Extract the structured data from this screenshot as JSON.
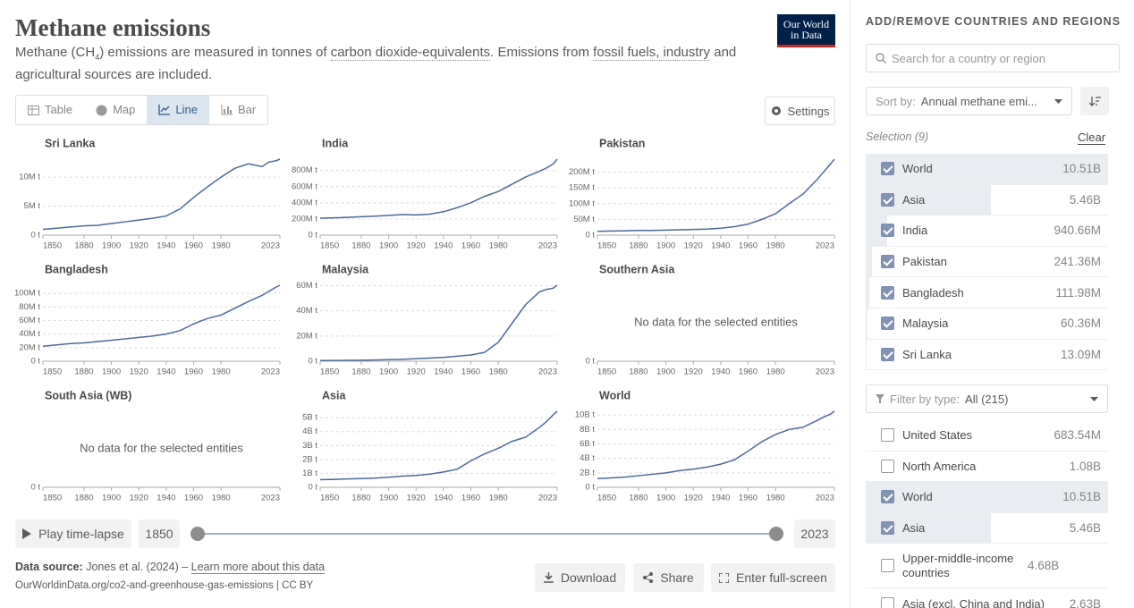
{
  "header": {
    "title": "Methane emissions",
    "subtitle": [
      "Methane (CH",
      "4",
      ") emissions are measured in tonnes of ",
      "carbon dioxide-equivalents",
      ". Emissions from ",
      "fossil fuels, industry",
      " and agricultural sources are included."
    ],
    "logo": [
      "Our World",
      "in Data"
    ]
  },
  "tabs": [
    "Table",
    "Map",
    "Line",
    "Bar"
  ],
  "settings": "Settings",
  "chart_data": [
    {
      "type": "line",
      "title": "Sri Lanka",
      "color": "#4c6a9c",
      "x": [
        1850,
        1860,
        1870,
        1880,
        1890,
        1900,
        1910,
        1920,
        1930,
        1940,
        1950,
        1960,
        1970,
        1980,
        1990,
        2000,
        2010,
        2015,
        2020,
        2023
      ],
      "values": [
        1000000,
        1200000,
        1400000,
        1600000,
        1700000,
        2000000,
        2300000,
        2600000,
        2900000,
        3300000,
        4500000,
        6500000,
        8300000,
        10000000,
        11500000,
        12300000,
        11800000,
        12600000,
        12800000,
        13090000
      ],
      "xlim": [
        1850,
        2023
      ],
      "xticks": [
        1850,
        1880,
        1900,
        1920,
        1940,
        1960,
        1980,
        2023
      ],
      "ylim": [
        0,
        13090000
      ],
      "yticks": [
        {
          "value": 0,
          "label": "0 t"
        },
        {
          "value": 5000000,
          "label": "5M t"
        },
        {
          "value": 10000000,
          "label": "10M t"
        }
      ]
    },
    {
      "type": "line",
      "title": "India",
      "color": "#4c6a9c",
      "x": [
        1850,
        1860,
        1870,
        1880,
        1890,
        1900,
        1910,
        1920,
        1930,
        1940,
        1950,
        1960,
        1970,
        1980,
        1990,
        2000,
        2010,
        2015,
        2020,
        2023
      ],
      "values": [
        210000000,
        215000000,
        220000000,
        228000000,
        235000000,
        245000000,
        255000000,
        250000000,
        260000000,
        290000000,
        340000000,
        400000000,
        480000000,
        540000000,
        630000000,
        720000000,
        790000000,
        830000000,
        880000000,
        940660000
      ],
      "xlim": [
        1850,
        2023
      ],
      "xticks": [
        1850,
        1880,
        1900,
        1920,
        1940,
        1960,
        1980,
        2023
      ],
      "ylim": [
        0,
        940660000
      ],
      "yticks": [
        {
          "value": 0,
          "label": "0 t"
        },
        {
          "value": 200000000,
          "label": "200M t"
        },
        {
          "value": 400000000,
          "label": "400M t"
        },
        {
          "value": 600000000,
          "label": "600M t"
        },
        {
          "value": 800000000,
          "label": "800M t"
        }
      ]
    },
    {
      "type": "line",
      "title": "Pakistan",
      "color": "#4c6a9c",
      "x": [
        1850,
        1860,
        1870,
        1880,
        1890,
        1900,
        1910,
        1920,
        1930,
        1940,
        1950,
        1960,
        1970,
        1980,
        1990,
        2000,
        2010,
        2015,
        2020,
        2023
      ],
      "values": [
        12000000,
        13000000,
        14000000,
        15000000,
        15000000,
        16000000,
        17000000,
        18000000,
        19000000,
        22000000,
        27000000,
        35000000,
        50000000,
        68000000,
        100000000,
        130000000,
        175000000,
        200000000,
        225000000,
        241360000
      ],
      "xlim": [
        1850,
        2023
      ],
      "xticks": [
        1850,
        1880,
        1900,
        1920,
        1940,
        1960,
        1980,
        2023
      ],
      "ylim": [
        0,
        241360000
      ],
      "yticks": [
        {
          "value": 0,
          "label": "0 t"
        },
        {
          "value": 50000000,
          "label": "50M t"
        },
        {
          "value": 100000000,
          "label": "100M t"
        },
        {
          "value": 150000000,
          "label": "150M t"
        },
        {
          "value": 200000000,
          "label": "200M t"
        }
      ]
    },
    {
      "type": "line",
      "title": "Bangladesh",
      "color": "#4c6a9c",
      "x": [
        1850,
        1860,
        1870,
        1880,
        1890,
        1900,
        1910,
        1920,
        1930,
        1940,
        1950,
        1960,
        1970,
        1980,
        1990,
        2000,
        2010,
        2015,
        2020,
        2023
      ],
      "values": [
        22000000,
        24000000,
        26000000,
        27000000,
        29000000,
        31000000,
        33000000,
        35000000,
        37000000,
        40000000,
        45000000,
        55000000,
        63000000,
        68000000,
        78000000,
        88000000,
        97000000,
        103000000,
        109000000,
        111980000
      ],
      "xlim": [
        1850,
        2023
      ],
      "xticks": [
        1850,
        1880,
        1900,
        1920,
        1940,
        1960,
        1980,
        2023
      ],
      "ylim": [
        0,
        111980000
      ],
      "yticks": [
        {
          "value": 0,
          "label": "0 t"
        },
        {
          "value": 20000000,
          "label": "20M t"
        },
        {
          "value": 40000000,
          "label": "40M t"
        },
        {
          "value": 60000000,
          "label": "60M t"
        },
        {
          "value": 80000000,
          "label": "80M t"
        },
        {
          "value": 100000000,
          "label": "100M t"
        }
      ]
    },
    {
      "type": "line",
      "title": "Malaysia",
      "color": "#4c6a9c",
      "x": [
        1850,
        1860,
        1870,
        1880,
        1890,
        1900,
        1910,
        1920,
        1930,
        1940,
        1950,
        1960,
        1970,
        1980,
        1990,
        2000,
        2010,
        2015,
        2020,
        2023
      ],
      "values": [
        500000,
        600000,
        700000,
        800000,
        1000000,
        1200000,
        1500000,
        2000000,
        2500000,
        3000000,
        4000000,
        5000000,
        7000000,
        15000000,
        30000000,
        45000000,
        55000000,
        57000000,
        58000000,
        60360000
      ],
      "xlim": [
        1850,
        2023
      ],
      "xticks": [
        1850,
        1880,
        1900,
        1920,
        1940,
        1960,
        1980,
        2023
      ],
      "ylim": [
        0,
        60360000
      ],
      "yticks": [
        {
          "value": 0,
          "label": "0 t"
        },
        {
          "value": 20000000,
          "label": "20M t"
        },
        {
          "value": 40000000,
          "label": "40M t"
        },
        {
          "value": 60000000,
          "label": "60M t"
        }
      ]
    },
    {
      "type": "line",
      "title": "Southern Asia",
      "message": "No data for the selected entities",
      "xlim": [
        1850,
        2023
      ],
      "xticks": [
        1850,
        1880,
        1900,
        1920,
        1940,
        1960,
        1980,
        2023
      ],
      "yticks": [
        {
          "value": 0,
          "label": "0 t"
        }
      ]
    },
    {
      "type": "line",
      "title": "South Asia (WB)",
      "message": "No data for the selected entities",
      "xlim": [
        1850,
        2023
      ],
      "xticks": [
        1850,
        1880,
        1900,
        1920,
        1940,
        1960,
        1980,
        2023
      ],
      "yticks": [
        {
          "value": 0,
          "label": "0 t"
        }
      ]
    },
    {
      "type": "line",
      "title": "Asia",
      "color": "#4c6a9c",
      "x": [
        1850,
        1860,
        1870,
        1880,
        1890,
        1900,
        1910,
        1920,
        1930,
        1940,
        1950,
        1960,
        1970,
        1980,
        1990,
        2000,
        2010,
        2015,
        2020,
        2023
      ],
      "values": [
        550000000,
        570000000,
        600000000,
        630000000,
        660000000,
        720000000,
        800000000,
        850000000,
        950000000,
        1100000000,
        1300000000,
        1900000000,
        2400000000,
        2800000000,
        3300000000,
        3600000000,
        4300000000,
        4700000000,
        5200000000,
        5460000000
      ],
      "xlim": [
        1850,
        2023
      ],
      "xticks": [
        1850,
        1880,
        1900,
        1920,
        1940,
        1960,
        1980,
        2023
      ],
      "ylim": [
        0,
        5460000000
      ],
      "yticks": [
        {
          "value": 0,
          "label": "0 t"
        },
        {
          "value": 1000000000,
          "label": "1B t"
        },
        {
          "value": 2000000000,
          "label": "2B t"
        },
        {
          "value": 3000000000,
          "label": "3B t"
        },
        {
          "value": 4000000000,
          "label": "4B t"
        },
        {
          "value": 5000000000,
          "label": "5B t"
        }
      ]
    },
    {
      "type": "line",
      "title": "World",
      "color": "#4c6a9c",
      "x": [
        1850,
        1860,
        1870,
        1880,
        1890,
        1900,
        1910,
        1920,
        1930,
        1940,
        1950,
        1960,
        1970,
        1980,
        1990,
        2000,
        2010,
        2015,
        2020,
        2023
      ],
      "values": [
        1200000000,
        1300000000,
        1400000000,
        1600000000,
        1800000000,
        2000000000,
        2300000000,
        2500000000,
        2800000000,
        3200000000,
        3800000000,
        5000000000,
        6300000000,
        7300000000,
        8000000000,
        8300000000,
        9200000000,
        9700000000,
        10100000000,
        10510000000
      ],
      "xlim": [
        1850,
        2023
      ],
      "xticks": [
        1850,
        1880,
        1900,
        1920,
        1940,
        1960,
        1980,
        2023
      ],
      "ylim": [
        0,
        10510000000
      ],
      "yticks": [
        {
          "value": 0,
          "label": "0 t"
        },
        {
          "value": 2000000000,
          "label": "2B t"
        },
        {
          "value": 4000000000,
          "label": "4B t"
        },
        {
          "value": 6000000000,
          "label": "6B t"
        },
        {
          "value": 8000000000,
          "label": "8B t"
        },
        {
          "value": 10000000000,
          "label": "10B t"
        }
      ]
    }
  ],
  "timeline": {
    "play": "Play time-lapse",
    "start": 1850,
    "end": 2023
  },
  "footer": {
    "source_label": "Data source:",
    "source": "Jones et al. (2024) – ",
    "learn_more": "Learn more about this data",
    "url": "OurWorldinData.org/co2-and-greenhouse-gas-emissions | CC BY"
  },
  "actions": [
    "Download",
    "Share",
    "Enter full-screen"
  ],
  "sidebar": {
    "heading": "ADD/REMOVE COUNTRIES AND REGIONS",
    "search_placeholder": "Search for a country or region",
    "sort_label": "Sort by:",
    "sort_value": "Annual methane emi...",
    "selection": "Selection (9)",
    "clear": "Clear",
    "selected": [
      {
        "name": "World",
        "value": "10.51B"
      },
      {
        "name": "Asia",
        "value": "5.46B"
      },
      {
        "name": "India",
        "value": "940.66M"
      },
      {
        "name": "Pakistan",
        "value": "241.36M"
      },
      {
        "name": "Bangladesh",
        "value": "111.98M"
      },
      {
        "name": "Malaysia",
        "value": "60.36M"
      },
      {
        "name": "Sri Lanka",
        "value": "13.09M"
      }
    ],
    "filter_label": "Filter by type:",
    "filter_value": "All (215)",
    "entities": [
      {
        "name": "United States",
        "value": "683.54M",
        "checked": false
      },
      {
        "name": "North America",
        "value": "1.08B",
        "checked": false
      },
      {
        "name": "World",
        "value": "10.51B",
        "checked": true
      },
      {
        "name": "Asia",
        "value": "5.46B",
        "checked": true
      },
      {
        "name": "Upper-middle-income countries",
        "value": "4.68B",
        "checked": false
      },
      {
        "name": "Asia (excl. China and India)",
        "value": "2.63B",
        "checked": false
      }
    ]
  }
}
